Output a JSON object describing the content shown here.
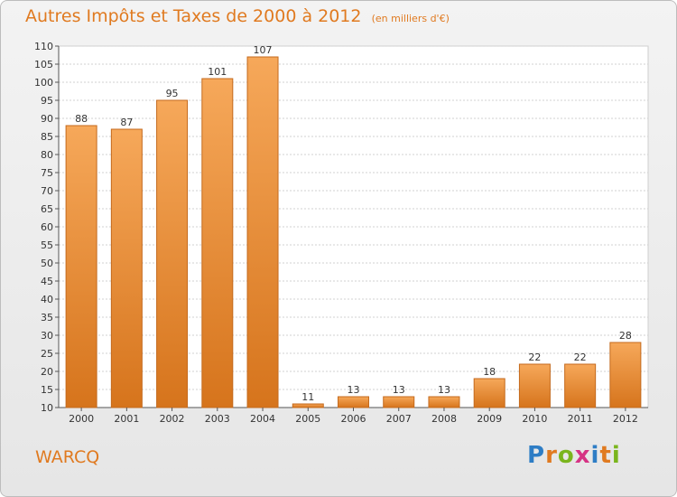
{
  "header": {
    "title": "Autres Impôts et Taxes de 2000 à 2012",
    "unit": "(en milliers d'€)"
  },
  "commune": "WARCQ",
  "logo": {
    "text": "Proxiti",
    "letter_colors": [
      "#2e7dc5",
      "#e07a20",
      "#7ab51d",
      "#d63384",
      "#2e7dc5",
      "#e07a20",
      "#7ab51d"
    ]
  },
  "colors": {
    "title": "#e07a20",
    "bar_top": "#f6a85a",
    "bar_bottom": "#d6741c",
    "bar_stroke": "#c46a1d",
    "grid": "#d0d0d0"
  },
  "chart_data": {
    "type": "bar",
    "title": "Autres Impôts et Taxes de 2000 à 2012",
    "subtitle": "(en milliers d'€)",
    "categories": [
      "2000",
      "2001",
      "2002",
      "2003",
      "2004",
      "2005",
      "2006",
      "2007",
      "2008",
      "2009",
      "2010",
      "2011",
      "2012"
    ],
    "values": [
      88,
      87,
      95,
      101,
      107,
      11,
      13,
      13,
      13,
      18,
      22,
      22,
      28
    ],
    "ylim": [
      10,
      110
    ],
    "yticks": [
      10,
      15,
      20,
      25,
      30,
      35,
      40,
      45,
      50,
      55,
      60,
      65,
      70,
      75,
      80,
      85,
      90,
      95,
      100,
      105,
      110
    ],
    "grid": true,
    "data_labels": true,
    "legend": "none"
  }
}
